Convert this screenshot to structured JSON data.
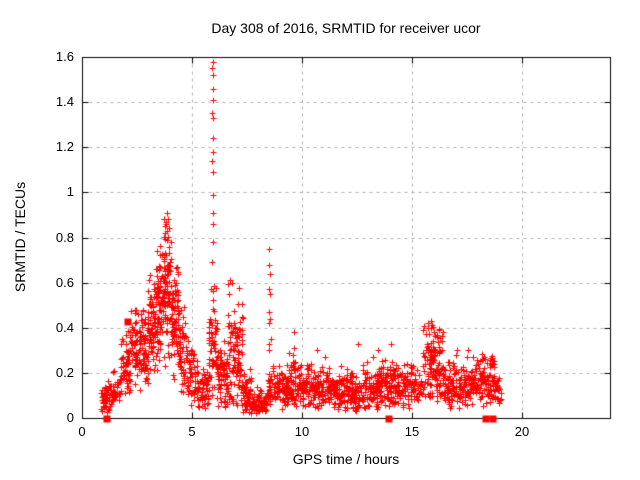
{
  "title": "Day 308 of 2016, SRMTID for receiver ucor",
  "chart_data": {
    "type": "scatter",
    "title": "Day 308 of 2016, SRMTID for receiver ucor",
    "xlabel": "GPS time / hours",
    "ylabel": "SRMTID / TECUs",
    "xlim": [
      0,
      24
    ],
    "ylim": [
      0,
      1.6
    ],
    "x_tick_values": [
      0,
      5,
      10,
      15,
      20
    ],
    "x_tick_labels": [
      "0",
      "5",
      "10",
      "15",
      "20"
    ],
    "y_tick_values": [
      0,
      0.2,
      0.4,
      0.6,
      0.8,
      1.0,
      1.2,
      1.4,
      1.6
    ],
    "y_tick_labels": [
      "0",
      "0.2",
      "0.4",
      "0.6",
      "0.8",
      "1",
      "1.2",
      "1.4",
      "1.6"
    ],
    "grid": true,
    "legend": "none",
    "marker": {
      "shape": "plus",
      "color": "#ff0000",
      "size": 6
    },
    "grid_color": "#b0b0b0",
    "border_color": "#000000",
    "data_x_range": [
      0.88,
      19.05
    ],
    "max_point": [
      5.95,
      1.58
    ],
    "square_markers": [
      [
        1.07,
        0.0
      ],
      [
        2.03,
        0.43
      ],
      [
        13.93,
        0.0
      ],
      [
        18.33,
        0.0
      ],
      [
        18.65,
        0.0
      ]
    ],
    "feature_points": [
      [
        5.95,
        1.58
      ],
      [
        5.93,
        1.55
      ],
      [
        5.95,
        1.52
      ],
      [
        5.96,
        1.46
      ],
      [
        5.95,
        1.41
      ],
      [
        5.93,
        1.35
      ],
      [
        5.95,
        1.33
      ],
      [
        5.94,
        1.24
      ],
      [
        5.96,
        1.18
      ],
      [
        5.93,
        1.14
      ],
      [
        5.95,
        1.09
      ],
      [
        5.95,
        0.99
      ],
      [
        5.97,
        0.91
      ],
      [
        5.94,
        0.86
      ],
      [
        5.96,
        0.78
      ],
      [
        5.93,
        0.69
      ],
      [
        8.5,
        0.75
      ],
      [
        8.52,
        0.68
      ],
      [
        8.55,
        0.64
      ],
      [
        8.5,
        0.57
      ],
      [
        8.53,
        0.55
      ],
      [
        8.48,
        0.47
      ],
      [
        8.55,
        0.44
      ],
      [
        8.5,
        0.42
      ],
      [
        8.57,
        0.35
      ],
      [
        8.52,
        0.33
      ],
      [
        8.5,
        0.3
      ],
      [
        3.87,
        0.91
      ],
      [
        3.9,
        0.88
      ],
      [
        3.82,
        0.86
      ],
      [
        3.95,
        0.84
      ],
      [
        3.75,
        0.82
      ],
      [
        3.85,
        0.79
      ],
      [
        9.62,
        0.38
      ],
      [
        9.65,
        0.31
      ],
      [
        9.6,
        0.28
      ],
      [
        9.68,
        0.25
      ],
      [
        12.55,
        0.33
      ],
      [
        13.45,
        0.3
      ],
      [
        14.05,
        0.33
      ],
      [
        17.05,
        0.3
      ],
      [
        15.88,
        0.43
      ],
      [
        15.9,
        0.41
      ],
      [
        15.86,
        0.4
      ],
      [
        16.02,
        0.38
      ],
      [
        10.7,
        0.3
      ],
      [
        11.05,
        0.27
      ]
    ],
    "density_clusters": [
      {
        "x0": 0.88,
        "x1": 1.25,
        "n": 45,
        "mean": 0.09,
        "sd": 0.035,
        "min": 0.02,
        "max": 0.18
      },
      {
        "x0": 1.25,
        "x1": 1.75,
        "n": 40,
        "mean": 0.13,
        "sd": 0.04,
        "min": 0.04,
        "max": 0.22
      },
      {
        "x0": 1.75,
        "x1": 2.2,
        "n": 55,
        "mean": 0.22,
        "sd": 0.07,
        "min": 0.08,
        "max": 0.42
      },
      {
        "x0": 2.2,
        "x1": 2.65,
        "n": 60,
        "mean": 0.33,
        "sd": 0.08,
        "min": 0.12,
        "max": 0.48
      },
      {
        "x0": 2.65,
        "x1": 3.0,
        "n": 55,
        "mean": 0.3,
        "sd": 0.09,
        "min": 0.1,
        "max": 0.52
      },
      {
        "x0": 3.0,
        "x1": 3.35,
        "n": 70,
        "mean": 0.42,
        "sd": 0.11,
        "min": 0.15,
        "max": 0.65
      },
      {
        "x0": 3.35,
        "x1": 3.7,
        "n": 80,
        "mean": 0.52,
        "sd": 0.13,
        "min": 0.2,
        "max": 0.78
      },
      {
        "x0": 3.7,
        "x1": 4.05,
        "n": 80,
        "mean": 0.55,
        "sd": 0.15,
        "min": 0.2,
        "max": 0.91
      },
      {
        "x0": 4.05,
        "x1": 4.4,
        "n": 70,
        "mean": 0.42,
        "sd": 0.12,
        "min": 0.15,
        "max": 0.7
      },
      {
        "x0": 4.4,
        "x1": 4.8,
        "n": 60,
        "mean": 0.28,
        "sd": 0.09,
        "min": 0.08,
        "max": 0.5
      },
      {
        "x0": 4.8,
        "x1": 5.3,
        "n": 55,
        "mean": 0.17,
        "sd": 0.07,
        "min": 0.05,
        "max": 0.35
      },
      {
        "x0": 5.3,
        "x1": 5.75,
        "n": 45,
        "mean": 0.12,
        "sd": 0.05,
        "min": 0.04,
        "max": 0.28
      },
      {
        "x0": 5.75,
        "x1": 6.15,
        "n": 60,
        "mean": 0.3,
        "sd": 0.13,
        "min": 0.08,
        "max": 0.62
      },
      {
        "x0": 6.15,
        "x1": 6.6,
        "n": 70,
        "mean": 0.18,
        "sd": 0.08,
        "min": 0.04,
        "max": 0.4
      },
      {
        "x0": 6.6,
        "x1": 7.3,
        "n": 110,
        "mean": 0.3,
        "sd": 0.14,
        "min": 0.05,
        "max": 0.65
      },
      {
        "x0": 7.3,
        "x1": 7.7,
        "n": 60,
        "mean": 0.1,
        "sd": 0.05,
        "min": 0.02,
        "max": 0.25
      },
      {
        "x0": 7.7,
        "x1": 8.4,
        "n": 70,
        "mean": 0.07,
        "sd": 0.03,
        "min": 0.02,
        "max": 0.16
      },
      {
        "x0": 8.4,
        "x1": 9.4,
        "n": 100,
        "mean": 0.13,
        "sd": 0.045,
        "min": 0.03,
        "max": 0.25
      },
      {
        "x0": 9.4,
        "x1": 9.9,
        "n": 60,
        "mean": 0.16,
        "sd": 0.06,
        "min": 0.05,
        "max": 0.38
      },
      {
        "x0": 9.9,
        "x1": 11.2,
        "n": 130,
        "mean": 0.13,
        "sd": 0.045,
        "min": 0.04,
        "max": 0.27
      },
      {
        "x0": 11.2,
        "x1": 12.2,
        "n": 110,
        "mean": 0.12,
        "sd": 0.045,
        "min": 0.03,
        "max": 0.25
      },
      {
        "x0": 12.2,
        "x1": 12.8,
        "n": 70,
        "mean": 0.11,
        "sd": 0.05,
        "min": 0.03,
        "max": 0.33
      },
      {
        "x0": 12.8,
        "x1": 13.6,
        "n": 90,
        "mean": 0.13,
        "sd": 0.05,
        "min": 0.04,
        "max": 0.3
      },
      {
        "x0": 13.6,
        "x1": 14.3,
        "n": 80,
        "mean": 0.15,
        "sd": 0.055,
        "min": 0.05,
        "max": 0.33
      },
      {
        "x0": 14.3,
        "x1": 15.5,
        "n": 110,
        "mean": 0.14,
        "sd": 0.05,
        "min": 0.04,
        "max": 0.28
      },
      {
        "x0": 15.5,
        "x1": 15.95,
        "n": 60,
        "mean": 0.25,
        "sd": 0.09,
        "min": 0.08,
        "max": 0.44
      },
      {
        "x0": 15.95,
        "x1": 16.45,
        "n": 70,
        "mean": 0.22,
        "sd": 0.08,
        "min": 0.06,
        "max": 0.4
      },
      {
        "x0": 16.45,
        "x1": 17.2,
        "n": 80,
        "mean": 0.14,
        "sd": 0.05,
        "min": 0.04,
        "max": 0.3
      },
      {
        "x0": 17.2,
        "x1": 18.2,
        "n": 100,
        "mean": 0.17,
        "sd": 0.055,
        "min": 0.05,
        "max": 0.3
      },
      {
        "x0": 18.2,
        "x1": 18.75,
        "n": 60,
        "mean": 0.17,
        "sd": 0.06,
        "min": 0.05,
        "max": 0.28
      },
      {
        "x0": 18.58,
        "x1": 18.74,
        "n": 16,
        "mean": 0.25,
        "sd": 0.012,
        "min": 0.22,
        "max": 0.27
      },
      {
        "x0": 18.75,
        "x1": 19.05,
        "n": 25,
        "mean": 0.13,
        "sd": 0.035,
        "min": 0.06,
        "max": 0.2
      }
    ]
  }
}
